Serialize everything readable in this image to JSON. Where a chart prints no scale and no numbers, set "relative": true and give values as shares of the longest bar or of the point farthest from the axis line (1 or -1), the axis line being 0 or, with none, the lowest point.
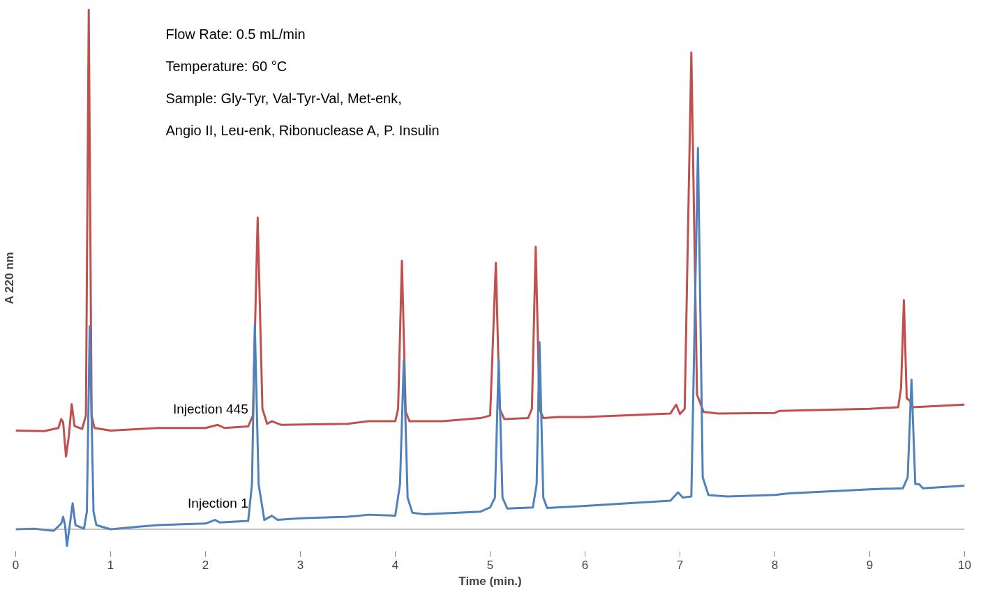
{
  "chart_data": {
    "type": "line",
    "relative": true,
    "xlabel": "Time (min.)",
    "ylabel": "A 220 nm",
    "xlim": [
      0,
      10
    ],
    "xticks": [
      0,
      1,
      2,
      3,
      4,
      5,
      6,
      7,
      8,
      9,
      10
    ],
    "grid": false,
    "marker": "none",
    "line_style": "solid",
    "annotations": [
      "Flow Rate: 0.5 mL/min",
      "Temperature: 60 °C",
      "Sample: Gly-Tyr, Val-Tyr-Val, Met-enk,",
      " Angio II, Leu-enk, Ribonuclease A, P. Insulin"
    ],
    "series": [
      {
        "name": "Injection 445",
        "color": "#c0504d",
        "x": [
          0,
          0.3,
          0.45,
          0.48,
          0.5,
          0.53,
          0.56,
          0.59,
          0.62,
          0.7,
          0.74,
          0.77,
          0.8,
          0.83,
          1.0,
          1.5,
          2.0,
          2.13,
          2.2,
          2.45,
          2.5,
          2.55,
          2.6,
          2.65,
          2.7,
          2.8,
          3.5,
          3.72,
          4.0,
          4.03,
          4.07,
          4.11,
          4.15,
          4.5,
          4.9,
          5.0,
          5.06,
          5.1,
          5.15,
          5.4,
          5.44,
          5.48,
          5.52,
          5.56,
          5.72,
          6.0,
          6.9,
          6.96,
          7.0,
          7.05,
          7.12,
          7.18,
          7.25,
          7.4,
          8.0,
          8.05,
          9.0,
          9.3,
          9.33,
          9.36,
          9.39,
          9.42,
          9.45,
          10
        ],
        "values": [
          0.19,
          0.189,
          0.195,
          0.212,
          0.206,
          0.14,
          0.179,
          0.241,
          0.199,
          0.193,
          0.219,
          1.0,
          0.219,
          0.195,
          0.19,
          0.195,
          0.195,
          0.201,
          0.195,
          0.198,
          0.219,
          0.6,
          0.232,
          0.203,
          0.208,
          0.201,
          0.203,
          0.208,
          0.208,
          0.232,
          0.517,
          0.226,
          0.208,
          0.208,
          0.214,
          0.219,
          0.513,
          0.232,
          0.212,
          0.214,
          0.232,
          0.544,
          0.232,
          0.214,
          0.216,
          0.216,
          0.223,
          0.24,
          0.222,
          0.232,
          0.918,
          0.259,
          0.226,
          0.223,
          0.224,
          0.228,
          0.232,
          0.235,
          0.272,
          0.441,
          0.252,
          0.248,
          0.235,
          0.24
        ]
      },
      {
        "name": "Injection 1",
        "color": "#4f81bd",
        "x": [
          0,
          0.2,
          0.4,
          0.48,
          0.5,
          0.52,
          0.54,
          0.57,
          0.6,
          0.63,
          0.72,
          0.75,
          0.78,
          0.82,
          0.85,
          1.0,
          1.3,
          1.5,
          2.0,
          2.1,
          2.15,
          2.45,
          2.49,
          2.52,
          2.56,
          2.62,
          2.7,
          2.76,
          3.0,
          3.5,
          3.72,
          4.0,
          4.05,
          4.09,
          4.13,
          4.18,
          4.3,
          4.9,
          5.0,
          5.05,
          5.09,
          5.13,
          5.18,
          5.45,
          5.49,
          5.52,
          5.56,
          5.6,
          6.0,
          6.9,
          6.98,
          7.03,
          7.12,
          7.19,
          7.24,
          7.3,
          7.5,
          8.0,
          8.15,
          9.0,
          9.35,
          9.4,
          9.44,
          9.48,
          9.52,
          9.56,
          10
        ],
        "values": [
          0,
          0.001,
          -0.003,
          0.011,
          0.024,
          0.008,
          -0.032,
          0.008,
          0.05,
          0.008,
          0.001,
          0.034,
          0.391,
          0.034,
          0.008,
          0,
          0.005,
          0.008,
          0.011,
          0.018,
          0.013,
          0.016,
          0.087,
          0.393,
          0.087,
          0.018,
          0.026,
          0.018,
          0.021,
          0.024,
          0.028,
          0.026,
          0.087,
          0.325,
          0.061,
          0.032,
          0.029,
          0.034,
          0.042,
          0.061,
          0.327,
          0.061,
          0.04,
          0.042,
          0.087,
          0.36,
          0.061,
          0.041,
          0.045,
          0.055,
          0.071,
          0.061,
          0.063,
          0.734,
          0.1,
          0.066,
          0.063,
          0.066,
          0.069,
          0.077,
          0.079,
          0.1,
          0.288,
          0.087,
          0.087,
          0.079,
          0.084
        ]
      }
    ]
  }
}
